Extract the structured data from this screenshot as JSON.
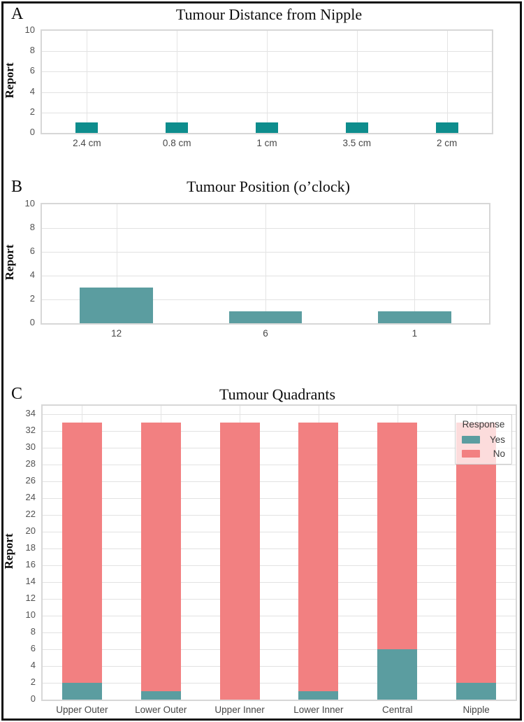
{
  "chart_data": [
    {
      "type": "bar",
      "letter": "A",
      "title": "Tumour Distance from Nipple",
      "ylabel": "Report",
      "categories": [
        "2.4 cm",
        "0.8 cm",
        "1 cm",
        "3.5 cm",
        "2 cm"
      ],
      "values": [
        1,
        1,
        1,
        1,
        1
      ],
      "bar_color": "#0E8D8D",
      "ylim": [
        0,
        10
      ],
      "yticks": [
        0,
        2,
        4,
        6,
        8,
        10
      ],
      "grid": "on",
      "legend": null
    },
    {
      "type": "bar",
      "letter": "B",
      "title": "Tumour Position (o’clock)",
      "ylabel": "Report",
      "categories": [
        "12",
        "6",
        "1"
      ],
      "values": [
        3,
        1,
        1
      ],
      "bar_color": "#5B9DA0",
      "ylim": [
        0,
        10
      ],
      "yticks": [
        0,
        2,
        4,
        6,
        8,
        10
      ],
      "grid": "on",
      "legend": null
    },
    {
      "type": "stacked-bar",
      "letter": "C",
      "title": "Tumour Quadrants",
      "ylabel": "Report",
      "categories": [
        "Upper Outer",
        "Lower Outer",
        "Upper Inner",
        "Lower Inner",
        "Central",
        "Nipple"
      ],
      "series": [
        {
          "name": "Yes",
          "color": "#5B9DA0",
          "values": [
            2,
            1,
            0,
            1,
            6,
            2
          ]
        },
        {
          "name": "No",
          "color": "#F28081",
          "values": [
            31,
            32,
            33,
            32,
            27,
            31
          ]
        }
      ],
      "totals": [
        33,
        33,
        33,
        33,
        33,
        33
      ],
      "ylim": [
        0,
        35
      ],
      "yticks": [
        0,
        2,
        4,
        6,
        8,
        10,
        12,
        14,
        16,
        18,
        20,
        22,
        24,
        26,
        28,
        30,
        32,
        34
      ],
      "grid": "on",
      "legend": {
        "title": "Response",
        "entries": [
          "Yes",
          "No"
        ],
        "position": "upper right"
      }
    }
  ]
}
